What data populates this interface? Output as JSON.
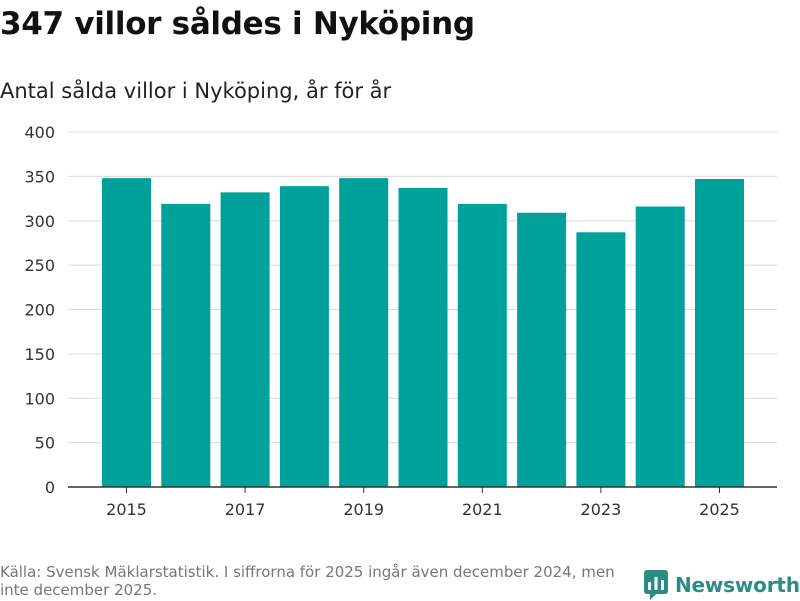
{
  "header": {
    "title": "347 villor såldes i Nyköping",
    "subtitle": "Antal sålda villor i Nyköping, år för år"
  },
  "chart_data": {
    "type": "bar",
    "title": "347 villor såldes i Nyköping",
    "subtitle": "Antal sålda villor i Nyköping, år för år",
    "categories": [
      "2015",
      "2016",
      "2017",
      "2018",
      "2019",
      "2020",
      "2021",
      "2022",
      "2023",
      "2024",
      "2025"
    ],
    "values": [
      348,
      319,
      332,
      339,
      348,
      337,
      319,
      309,
      287,
      316,
      347
    ],
    "x_tick_labels": [
      "2015",
      "2017",
      "2019",
      "2021",
      "2023",
      "2025"
    ],
    "y_ticks": [
      "0",
      "50",
      "100",
      "150",
      "200",
      "250",
      "300",
      "350",
      "400"
    ],
    "ylim": [
      0,
      400
    ],
    "xlabel": "",
    "ylabel": "",
    "grid": true,
    "bar_color": "#00a19a"
  },
  "footer": {
    "source": "Källa: Svensk Mäklarstatistik. I siffrorna för 2025 ingår även december 2024, men inte december 2025.",
    "brand": "Newsworthy",
    "brand_color": "#2a8c84"
  }
}
